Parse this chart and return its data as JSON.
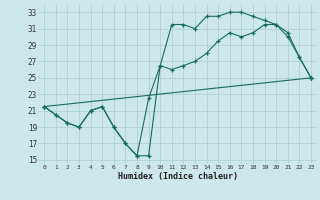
{
  "xlabel": "Humidex (Indice chaleur)",
  "bg_color": "#cce8ea",
  "grid_color": "#aacccc",
  "line_color": "#1a6b60",
  "xlim": [
    -0.5,
    23.5
  ],
  "ylim": [
    14.5,
    34
  ],
  "yticks": [
    15,
    17,
    19,
    21,
    23,
    25,
    27,
    29,
    31,
    33
  ],
  "xticks": [
    0,
    1,
    2,
    3,
    4,
    5,
    6,
    7,
    8,
    9,
    10,
    11,
    12,
    13,
    14,
    15,
    16,
    17,
    18,
    19,
    20,
    21,
    22,
    23
  ],
  "line1_x": [
    0,
    1,
    2,
    3,
    4,
    5,
    6,
    7,
    8,
    9,
    10,
    11,
    12,
    13,
    14,
    15,
    16,
    17,
    18,
    19,
    20,
    21,
    22,
    23
  ],
  "line1_y": [
    21.5,
    20.5,
    19.5,
    19.0,
    21.0,
    21.5,
    19.0,
    17.0,
    15.5,
    15.5,
    26.5,
    31.5,
    31.5,
    31.0,
    32.5,
    32.5,
    33.0,
    33.0,
    32.5,
    32.0,
    31.5,
    30.0,
    27.5,
    25.0
  ],
  "line2_x": [
    0,
    1,
    2,
    3,
    4,
    5,
    6,
    7,
    8,
    9,
    10,
    11,
    12,
    13,
    14,
    15,
    16,
    17,
    18,
    19,
    20,
    21,
    22,
    23
  ],
  "line2_y": [
    21.5,
    20.5,
    19.5,
    19.0,
    21.0,
    21.5,
    19.0,
    17.0,
    15.5,
    22.5,
    26.5,
    26.0,
    26.5,
    27.0,
    28.0,
    29.5,
    30.5,
    30.0,
    30.5,
    31.5,
    31.5,
    30.5,
    27.5,
    25.0
  ],
  "line3_x": [
    0,
    23
  ],
  "line3_y": [
    21.5,
    25.0
  ]
}
